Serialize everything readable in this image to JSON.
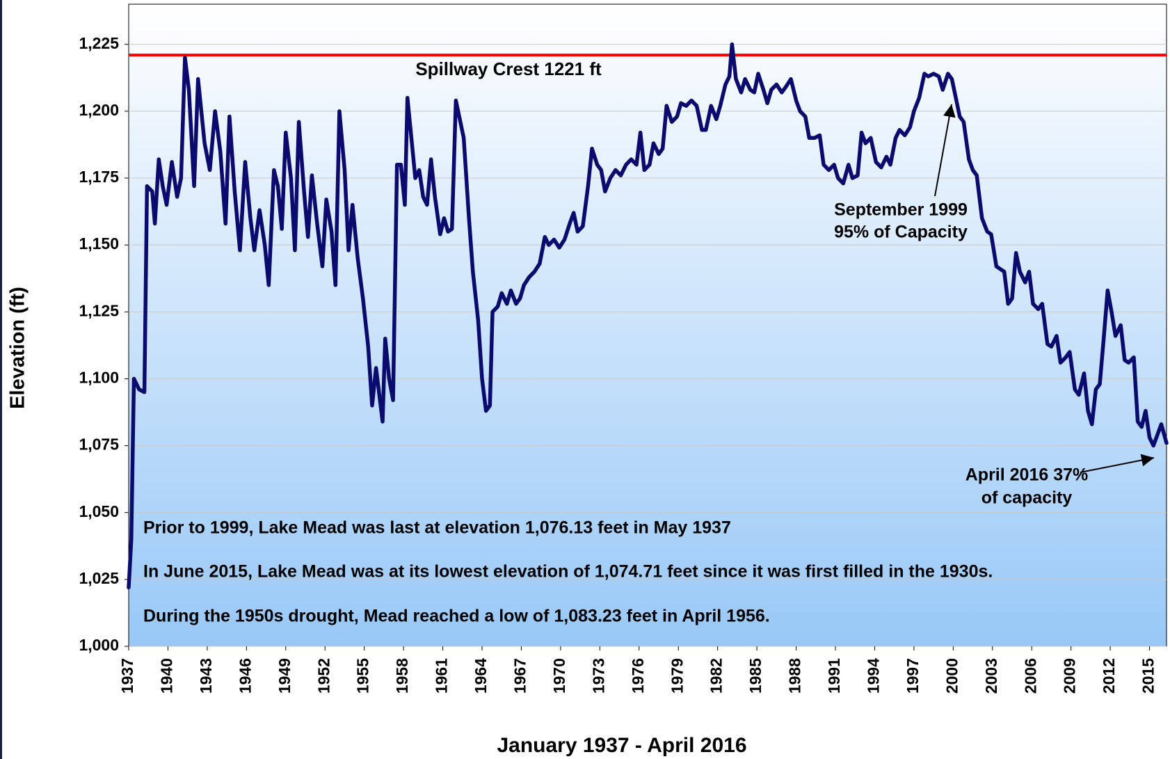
{
  "chart_data": {
    "type": "line",
    "y_label": "Elevation (ft)",
    "x_label": "January 1937 - April 2016",
    "x": [
      1937.0,
      1937.2,
      1937.4,
      1937.8,
      1938.2,
      1938.4,
      1938.8,
      1939.0,
      1939.3,
      1939.6,
      1939.9,
      1940.3,
      1940.7,
      1941.0,
      1941.3,
      1941.6,
      1942.0,
      1942.3,
      1942.8,
      1943.2,
      1943.6,
      1944.0,
      1944.4,
      1944.7,
      1945.1,
      1945.5,
      1945.9,
      1946.3,
      1946.6,
      1947.0,
      1947.4,
      1947.7,
      1948.1,
      1948.4,
      1948.7,
      1949.0,
      1949.4,
      1949.7,
      1950.0,
      1950.4,
      1950.7,
      1951.0,
      1951.4,
      1951.8,
      1952.1,
      1952.5,
      1952.8,
      1953.1,
      1953.5,
      1953.8,
      1954.1,
      1954.5,
      1954.9,
      1955.3,
      1955.6,
      1955.9,
      1956.2,
      1956.4,
      1956.6,
      1956.9,
      1957.2,
      1957.5,
      1957.8,
      1958.1,
      1958.3,
      1958.6,
      1958.9,
      1959.2,
      1959.5,
      1959.8,
      1960.1,
      1960.4,
      1960.8,
      1961.1,
      1961.4,
      1961.7,
      1962.0,
      1962.3,
      1962.6,
      1963.0,
      1963.3,
      1963.7,
      1964.0,
      1964.3,
      1964.6,
      1964.8,
      1965.2,
      1965.5,
      1965.9,
      1966.2,
      1966.6,
      1966.9,
      1967.2,
      1967.6,
      1968.0,
      1968.4,
      1968.8,
      1969.1,
      1969.5,
      1969.9,
      1970.3,
      1970.7,
      1971.0,
      1971.3,
      1971.7,
      1972.1,
      1972.4,
      1972.8,
      1973.1,
      1973.4,
      1973.8,
      1974.2,
      1974.6,
      1975.0,
      1975.4,
      1975.8,
      1976.1,
      1976.4,
      1976.8,
      1977.1,
      1977.5,
      1977.8,
      1978.1,
      1978.5,
      1978.9,
      1979.2,
      1979.6,
      1980.0,
      1980.4,
      1980.8,
      1981.1,
      1981.5,
      1981.9,
      1982.2,
      1982.6,
      1982.9,
      1983.1,
      1983.4,
      1983.8,
      1984.1,
      1984.5,
      1984.8,
      1985.1,
      1985.5,
      1985.8,
      1986.1,
      1986.5,
      1986.9,
      1987.2,
      1987.6,
      1988.0,
      1988.3,
      1988.7,
      1989.0,
      1989.4,
      1989.8,
      1990.1,
      1990.5,
      1990.9,
      1991.2,
      1991.6,
      1992.0,
      1992.3,
      1992.7,
      1993.0,
      1993.3,
      1993.7,
      1994.1,
      1994.5,
      1994.9,
      1995.2,
      1995.6,
      1995.9,
      1996.3,
      1996.7,
      1997.0,
      1997.4,
      1997.8,
      1998.1,
      1998.5,
      1998.9,
      1999.2,
      1999.6,
      1999.9,
      2000.2,
      2000.5,
      2000.8,
      2001.2,
      2001.5,
      2001.8,
      2002.2,
      2002.6,
      2002.9,
      2003.3,
      2003.6,
      2003.9,
      2004.2,
      2004.5,
      2004.8,
      2005.1,
      2005.5,
      2005.8,
      2006.1,
      2006.5,
      2006.8,
      2007.2,
      2007.5,
      2007.9,
      2008.2,
      2008.6,
      2008.9,
      2009.3,
      2009.6,
      2010.0,
      2010.3,
      2010.6,
      2010.9,
      2011.2,
      2011.5,
      2011.8,
      2012.1,
      2012.4,
      2012.8,
      2013.1,
      2013.4,
      2013.8,
      2014.1,
      2014.4,
      2014.7,
      2015.0,
      2015.3,
      2015.6,
      2015.9,
      2016.3
    ],
    "series": [
      {
        "color": "#0b0b6f",
        "values": [
          1022,
          1040,
          1100,
          1096,
          1095,
          1172,
          1170,
          1158,
          1182,
          1172,
          1165,
          1181,
          1168,
          1175,
          1220,
          1208,
          1172,
          1212,
          1188,
          1178,
          1200,
          1185,
          1158,
          1198,
          1170,
          1148,
          1181,
          1160,
          1148,
          1163,
          1150,
          1135,
          1178,
          1172,
          1156,
          1192,
          1175,
          1148,
          1196,
          1170,
          1153,
          1176,
          1158,
          1142,
          1167,
          1155,
          1135,
          1200,
          1178,
          1148,
          1165,
          1145,
          1130,
          1112,
          1090,
          1104,
          1092,
          1084,
          1115,
          1100,
          1092,
          1180,
          1180,
          1165,
          1205,
          1190,
          1175,
          1178,
          1168,
          1165,
          1182,
          1168,
          1154,
          1160,
          1155,
          1156,
          1204,
          1197,
          1190,
          1160,
          1140,
          1122,
          1100,
          1088,
          1090,
          1125,
          1127,
          1132,
          1128,
          1133,
          1128,
          1130,
          1135,
          1138,
          1140,
          1143,
          1153,
          1150,
          1152,
          1149,
          1152,
          1158,
          1162,
          1155,
          1157,
          1172,
          1186,
          1180,
          1178,
          1170,
          1175,
          1178,
          1176,
          1180,
          1182,
          1180,
          1192,
          1178,
          1180,
          1188,
          1184,
          1186,
          1202,
          1196,
          1198,
          1203,
          1202,
          1204,
          1202,
          1193,
          1193,
          1202,
          1197,
          1202,
          1210,
          1213,
          1225,
          1212,
          1207,
          1212,
          1208,
          1207,
          1214,
          1208,
          1203,
          1208,
          1210,
          1207,
          1209,
          1212,
          1204,
          1200,
          1198,
          1190,
          1190,
          1191,
          1180,
          1178,
          1180,
          1175,
          1173,
          1180,
          1175,
          1176,
          1192,
          1188,
          1190,
          1181,
          1179,
          1183,
          1180,
          1190,
          1193,
          1191,
          1194,
          1200,
          1205,
          1214,
          1213,
          1214,
          1213,
          1208,
          1214,
          1212,
          1205,
          1198,
          1196,
          1182,
          1178,
          1176,
          1160,
          1155,
          1154,
          1142,
          1141,
          1140,
          1128,
          1130,
          1147,
          1140,
          1136,
          1140,
          1128,
          1126,
          1128,
          1113,
          1112,
          1116,
          1106,
          1108,
          1110,
          1096,
          1094,
          1102,
          1088,
          1083,
          1096,
          1098,
          1115,
          1133,
          1125,
          1116,
          1120,
          1107,
          1106,
          1108,
          1084,
          1082,
          1088,
          1078,
          1075,
          1079,
          1083,
          1076
        ]
      }
    ],
    "xlim": [
      1937,
      2016.3
    ],
    "xticks": [
      1937,
      1940,
      1943,
      1946,
      1949,
      1952,
      1955,
      1958,
      1961,
      1964,
      1967,
      1970,
      1973,
      1976,
      1979,
      1982,
      1985,
      1988,
      1991,
      1994,
      1997,
      2000,
      2003,
      2006,
      2009,
      2012,
      2015
    ],
    "ylim": [
      1000,
      1240
    ],
    "yticks": [
      {
        "value": 1000,
        "label": "1,000"
      },
      {
        "value": 1025,
        "label": "1,025"
      },
      {
        "value": 1050,
        "label": "1,050"
      },
      {
        "value": 1075,
        "label": "1,075"
      },
      {
        "value": 1100,
        "label": "1,100"
      },
      {
        "value": 1125,
        "label": "1,125"
      },
      {
        "value": 1150,
        "label": "1,150"
      },
      {
        "value": 1175,
        "label": "1,175"
      },
      {
        "value": 1200,
        "label": "1,200"
      },
      {
        "value": 1225,
        "label": "1,225"
      }
    ],
    "grid": true,
    "reference_line": {
      "label": "Spillway Crest 1221 ft",
      "value": 1221,
      "color": "#ff0000"
    },
    "annotations": [
      {
        "lines": [
          "September 1999",
          "95% of Capacity"
        ]
      },
      {
        "lines": [
          "April 2016 37%",
          "of capacity"
        ]
      }
    ],
    "notes": [
      "Prior to 1999, Lake Mead was last at elevation 1,076.13 feet in May 1937",
      "In June 2015, Lake Mead was at its lowest elevation of 1,074.71 feet since it was first filled in the 1930s.",
      "During the 1950s drought, Mead reached a low of 1,083.23 feet in April 1956."
    ]
  }
}
